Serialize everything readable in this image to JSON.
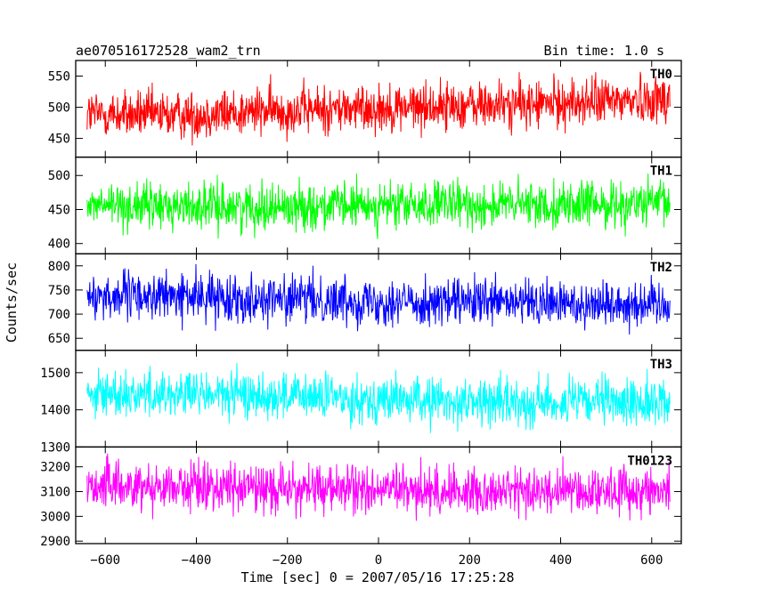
{
  "header": {
    "title": "ae070516172528_wam2_trn",
    "bin_time": "Bin time: 1.0 s"
  },
  "chart_data": {
    "type": "line",
    "xlabel": "Time [sec] 0 = 2007/05/16 17:25:28",
    "ylabel": "Counts/sec",
    "xlim": [
      -665,
      665
    ],
    "data_x_range": [
      -640,
      640
    ],
    "xticks": [
      -600,
      -400,
      -200,
      0,
      200,
      400,
      600
    ],
    "bin_seconds": 1.0,
    "grid": false,
    "panels": [
      {
        "name": "TH0",
        "color": "#ff0000",
        "ylim": [
          420,
          575
        ],
        "yticks": [
          450,
          500,
          550
        ],
        "series": {
          "points": [
            [
              -640,
              490
            ],
            [
              -550,
              488
            ],
            [
              -450,
              487
            ],
            [
              -350,
              490
            ],
            [
              -250,
              494
            ],
            [
              -150,
              496
            ],
            [
              -50,
              498
            ],
            [
              50,
              500
            ],
            [
              150,
              502
            ],
            [
              250,
              503
            ],
            [
              350,
              505
            ],
            [
              450,
              508
            ],
            [
              550,
              512
            ],
            [
              640,
              515
            ]
          ]
        },
        "spread": 38
      },
      {
        "name": "TH1",
        "color": "#00ff00",
        "ylim": [
          385,
          527
        ],
        "yticks": [
          400,
          450,
          500
        ],
        "series": {
          "points": [
            [
              -640,
              456
            ],
            [
              -450,
              455
            ],
            [
              -250,
              454
            ],
            [
              -50,
              455
            ],
            [
              150,
              456
            ],
            [
              350,
              457
            ],
            [
              550,
              458
            ],
            [
              640,
              458
            ]
          ]
        },
        "spread": 33
      },
      {
        "name": "TH2",
        "color": "#0000ff",
        "ylim": [
          625,
          825
        ],
        "yticks": [
          650,
          700,
          750,
          800
        ],
        "series": {
          "points": [
            [
              -640,
              738
            ],
            [
              -450,
              737
            ],
            [
              -250,
              733
            ],
            [
              -50,
              728
            ],
            [
              150,
              724
            ],
            [
              350,
              722
            ],
            [
              550,
              722
            ],
            [
              640,
              723
            ]
          ]
        },
        "spread": 48
      },
      {
        "name": "TH3",
        "color": "#00ffff",
        "ylim": [
          1300,
          1560
        ],
        "yticks": [
          1300,
          1400,
          1500
        ],
        "series": {
          "points": [
            [
              -640,
              1445
            ],
            [
              -450,
              1443
            ],
            [
              -250,
              1438
            ],
            [
              -50,
              1430
            ],
            [
              150,
              1423
            ],
            [
              350,
              1420
            ],
            [
              550,
              1420
            ],
            [
              640,
              1421
            ]
          ]
        },
        "spread": 62
      },
      {
        "name": "TH0123",
        "color": "#ff00ff",
        "ylim": [
          2890,
          3280
        ],
        "yticks": [
          2900,
          3000,
          3100,
          3200
        ],
        "series": {
          "points": [
            [
              -640,
              3125
            ],
            [
              -450,
              3123
            ],
            [
              -250,
              3115
            ],
            [
              -50,
              3108
            ],
            [
              150,
              3103
            ],
            [
              350,
              3102
            ],
            [
              550,
              3104
            ],
            [
              640,
              3106
            ]
          ]
        },
        "spread": 95
      }
    ]
  }
}
